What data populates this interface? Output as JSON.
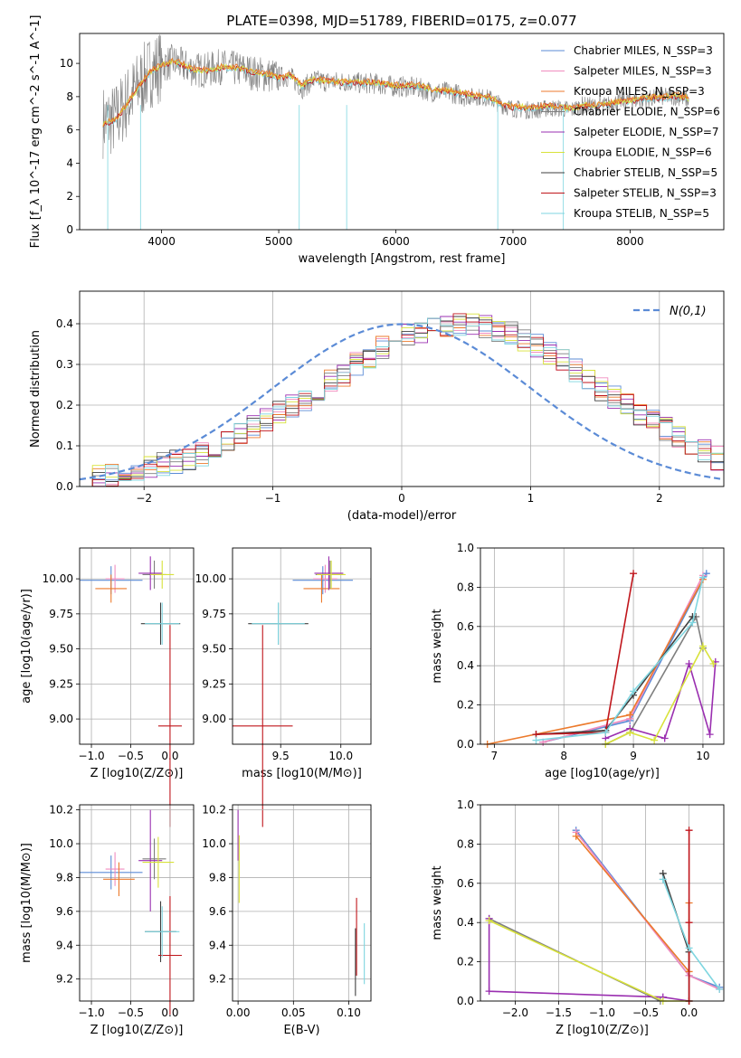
{
  "figure_title": "PLATE=0398, MJD=51789, FIBERID=0175, z=0.077",
  "colors": {
    "Chabrier MILES": "#5b8bd6",
    "Salpeter MILES": "#f08cbf",
    "Kroupa MILES": "#ec7a2c",
    "Chabrier ELODIE": "#7f7f7f",
    "Salpeter ELODIE": "#9a2fb0",
    "Kroupa ELODIE": "#d8e23a",
    "Chabrier STELIB": "#3f3f3f",
    "Salpeter STELIB": "#c0161c",
    "Kroupa STELIB": "#7fd6e0",
    "data": "#808080",
    "gaussian": "#5b8bd6"
  },
  "chart_data": [
    {
      "type": "line",
      "panel": "spectrum",
      "title": "PLATE=0398, MJD=51789, FIBERID=0175, z=0.077",
      "xlabel": "wavelength [Angstrom, rest frame]",
      "ylabel": "Flux [f_λ 10^-17 erg cm^-2 s^-1 A^-1]",
      "xlim": [
        3300,
        8800
      ],
      "ylim": [
        0,
        11.8
      ],
      "xticks": [
        4000,
        5000,
        6000,
        7000,
        8000
      ],
      "yticks": [
        0,
        2,
        4,
        6,
        8,
        10
      ],
      "grid": false,
      "legend_position": "top-right",
      "legend": [
        "Chabrier MILES, N_SSP=3",
        "Salpeter MILES, N_SSP=3",
        "Kroupa MILES, N_SSP=3",
        "Chabrier ELODIE, N_SSP=6",
        "Salpeter ELODIE, N_SSP=7",
        "Kroupa ELODIE, N_SSP=6",
        "Chabrier STELIB, N_SSP=5",
        "Salpeter STELIB, N_SSP=3",
        "Kroupa STELIB, N_SSP=5"
      ],
      "x": [
        3500,
        3600,
        3700,
        3800,
        3900,
        4000,
        4100,
        4200,
        4300,
        4400,
        4500,
        4600,
        4700,
        4800,
        4900,
        5000,
        5100,
        5200,
        5300,
        5400,
        5500,
        5600,
        5700,
        5800,
        5900,
        6000,
        6100,
        6200,
        6300,
        6400,
        6500,
        6600,
        6700,
        6800,
        6900,
        7000,
        7100,
        7200,
        7300,
        7400,
        7500,
        7600,
        7700,
        7800,
        7900,
        8000,
        8100,
        8200,
        8300,
        8400,
        8500
      ],
      "series": [
        {
          "name": "data",
          "values": [
            6.5,
            6.6,
            7.6,
            8.6,
            9.5,
            9.9,
            10.1,
            9.8,
            9.6,
            9.6,
            9.8,
            9.7,
            9.6,
            9.4,
            9.3,
            9.2,
            9.2,
            8.5,
            9.0,
            8.9,
            8.9,
            8.9,
            8.8,
            8.8,
            8.7,
            8.6,
            8.6,
            8.5,
            8.3,
            8.3,
            8.2,
            8.0,
            8.0,
            7.9,
            7.5,
            7.3,
            7.2,
            7.2,
            7.3,
            7.3,
            7.2,
            7.5,
            7.4,
            7.5,
            7.7,
            7.8,
            7.8,
            7.9,
            8.0,
            8.0,
            7.8
          ]
        },
        {
          "name": "model",
          "values": [
            6.3,
            6.5,
            7.4,
            8.5,
            9.4,
            9.8,
            10.1,
            9.8,
            9.5,
            9.5,
            9.7,
            9.7,
            9.6,
            9.4,
            9.3,
            9.1,
            9.2,
            8.6,
            9.0,
            8.9,
            8.8,
            8.8,
            8.8,
            8.8,
            8.7,
            8.6,
            8.6,
            8.6,
            8.4,
            8.3,
            8.2,
            8.1,
            8.0,
            7.9,
            7.5,
            7.3,
            7.3,
            7.3,
            7.4,
            7.3,
            7.2,
            7.4,
            7.4,
            7.5,
            7.6,
            7.7,
            7.8,
            7.9,
            7.9,
            8.0,
            7.8
          ]
        }
      ]
    },
    {
      "type": "line",
      "panel": "residuals",
      "xlabel": "(data-model)/error",
      "ylabel": "Normed distribution",
      "xlim": [
        -2.5,
        2.5
      ],
      "ylim": [
        0,
        0.48
      ],
      "xticks": [
        -2,
        -1,
        0,
        1,
        2
      ],
      "yticks": [
        0.0,
        0.1,
        0.2,
        0.3,
        0.4
      ],
      "grid": true,
      "legend_position": "top-right",
      "legend": [
        "N(0,1)"
      ],
      "bin_width": 0.1,
      "bin_start": -2.5,
      "histogram": [
        0.02,
        0.025,
        0.03,
        0.04,
        0.045,
        0.05,
        0.055,
        0.06,
        0.07,
        0.08,
        0.1,
        0.115,
        0.13,
        0.15,
        0.165,
        0.185,
        0.2,
        0.215,
        0.24,
        0.26,
        0.27,
        0.3,
        0.32,
        0.34,
        0.355,
        0.37,
        0.38,
        0.385,
        0.395,
        0.4,
        0.4,
        0.395,
        0.385,
        0.375,
        0.36,
        0.345,
        0.33,
        0.31,
        0.285,
        0.265,
        0.24,
        0.22,
        0.2,
        0.18,
        0.16,
        0.14,
        0.12,
        0.1,
        0.085,
        0.07,
        0.06
      ]
    },
    {
      "type": "scatter",
      "panel": "age-vs-Z",
      "xlabel": "Z [log10(Z/Z⊙)]",
      "ylabel": "age  [log10(age/yr)]",
      "xlim": [
        -1.15,
        0.3
      ],
      "ylim": [
        8.82,
        10.22
      ],
      "xticks": [
        -1.0,
        -0.5,
        0.0
      ],
      "yticks": [
        9.0,
        9.25,
        9.5,
        9.75,
        10.0
      ],
      "grid": true,
      "points": [
        {
          "label": "Chabrier MILES",
          "x": -0.75,
          "y": 9.99,
          "xerr": 0.4,
          "yerr": 0.1
        },
        {
          "label": "Salpeter MILES",
          "x": -0.7,
          "y": 10.0,
          "xerr": 0.12,
          "yerr": 0.1
        },
        {
          "label": "Kroupa MILES",
          "x": -0.75,
          "y": 9.93,
          "xerr": 0.2,
          "yerr": 0.1
        },
        {
          "label": "Chabrier ELODIE",
          "x": -0.2,
          "y": 10.03,
          "xerr": 0.15,
          "yerr": 0.1
        },
        {
          "label": "Salpeter ELODIE",
          "x": -0.25,
          "y": 10.04,
          "xerr": 0.15,
          "yerr": 0.12
        },
        {
          "label": "Kroupa ELODIE",
          "x": -0.1,
          "y": 10.03,
          "xerr": 0.15,
          "yerr": 0.1
        },
        {
          "label": "Chabrier STELIB",
          "x": -0.12,
          "y": 9.68,
          "xerr": 0.25,
          "yerr": 0.15
        },
        {
          "label": "Salpeter STELIB",
          "x": 0.0,
          "y": 8.95,
          "xerr": 0.15,
          "yerr": 0.72
        },
        {
          "label": "Kroupa STELIB",
          "x": -0.1,
          "y": 9.68,
          "xerr": 0.22,
          "yerr": 0.15
        }
      ]
    },
    {
      "type": "scatter",
      "panel": "age-vs-mass",
      "xlabel": "mass [log10(M/M⊙)]",
      "ylabel": "",
      "xlim": [
        9.1,
        10.25
      ],
      "ylim": [
        8.82,
        10.22
      ],
      "xticks": [
        9.5,
        10.0
      ],
      "yticks": [
        9.0,
        9.25,
        9.5,
        9.75,
        10.0
      ],
      "grid": true,
      "points": [
        {
          "label": "Chabrier MILES",
          "x": 9.85,
          "y": 9.99,
          "xerr": 0.25,
          "yerr": 0.1
        },
        {
          "label": "Salpeter MILES",
          "x": 9.87,
          "y": 10.0,
          "xerr": 0.1,
          "yerr": 0.1
        },
        {
          "label": "Kroupa MILES",
          "x": 9.84,
          "y": 9.93,
          "xerr": 0.15,
          "yerr": 0.1
        },
        {
          "label": "Chabrier ELODIE",
          "x": 9.91,
          "y": 10.03,
          "xerr": 0.12,
          "yerr": 0.1
        },
        {
          "label": "Salpeter ELODIE",
          "x": 9.9,
          "y": 10.04,
          "xerr": 0.12,
          "yerr": 0.12
        },
        {
          "label": "Kroupa ELODIE",
          "x": 9.92,
          "y": 10.03,
          "xerr": 0.12,
          "yerr": 0.1
        },
        {
          "label": "Chabrier STELIB",
          "x": 9.48,
          "y": 9.68,
          "xerr": 0.25,
          "yerr": 0.15
        },
        {
          "label": "Salpeter STELIB",
          "x": 9.35,
          "y": 8.95,
          "xerr": 0.25,
          "yerr": 0.72
        },
        {
          "label": "Kroupa STELIB",
          "x": 9.48,
          "y": 9.68,
          "xerr": 0.22,
          "yerr": 0.15
        }
      ]
    },
    {
      "type": "line",
      "panel": "mass-weight-vs-age",
      "xlabel": "age  [log10(age/yr)]",
      "ylabel": "mass weight",
      "xlim": [
        6.8,
        10.3
      ],
      "ylim": [
        0,
        1.0
      ],
      "xticks": [
        7,
        8,
        9,
        10
      ],
      "yticks": [
        0.0,
        0.2,
        0.4,
        0.6,
        0.8,
        1.0
      ],
      "grid": true,
      "series": [
        {
          "name": "Chabrier MILES",
          "x": [
            7.7,
            8.95,
            10.05
          ],
          "values": [
            0.01,
            0.12,
            0.87
          ]
        },
        {
          "name": "Salpeter MILES",
          "x": [
            7.7,
            8.95,
            10.0
          ],
          "values": [
            0.01,
            0.13,
            0.86
          ]
        },
        {
          "name": "Kroupa MILES",
          "x": [
            6.9,
            8.95,
            10.0
          ],
          "values": [
            0.0,
            0.15,
            0.84
          ]
        },
        {
          "name": "Chabrier ELODIE",
          "x": [
            8.6,
            8.95,
            9.9,
            10.0
          ],
          "values": [
            0.0,
            0.06,
            0.65,
            0.49
          ]
        },
        {
          "name": "Salpeter ELODIE",
          "x": [
            8.6,
            8.95,
            9.45,
            9.8,
            10.1,
            10.18
          ],
          "values": [
            0.03,
            0.08,
            0.03,
            0.41,
            0.05,
            0.42
          ]
        },
        {
          "name": "Kroupa ELODIE",
          "x": [
            8.6,
            8.95,
            9.3,
            10.0,
            10.15
          ],
          "values": [
            0.0,
            0.06,
            0.02,
            0.5,
            0.41
          ]
        },
        {
          "name": "Chabrier STELIB",
          "x": [
            7.6,
            8.6,
            9.0,
            9.85
          ],
          "values": [
            0.05,
            0.07,
            0.25,
            0.65
          ]
        },
        {
          "name": "Salpeter STELIB",
          "x": [
            7.6,
            8.6,
            9.0
          ],
          "values": [
            0.05,
            0.06,
            0.87
          ]
        },
        {
          "name": "Kroupa STELIB",
          "x": [
            7.6,
            8.6,
            9.0,
            9.85,
            10.0
          ],
          "values": [
            0.02,
            0.06,
            0.27,
            0.62,
            0.85
          ]
        }
      ]
    },
    {
      "type": "scatter",
      "panel": "mass-vs-Z",
      "xlabel": "Z [log10(Z/Z⊙)]",
      "ylabel": "mass [log10(M/M⊙)]",
      "xlim": [
        -1.15,
        0.3
      ],
      "ylim": [
        9.07,
        10.23
      ],
      "xticks": [
        -1.0,
        -0.5,
        0.0
      ],
      "yticks": [
        9.2,
        9.4,
        9.6,
        9.8,
        10.0,
        10.2
      ],
      "grid": true,
      "points": [
        {
          "label": "Chabrier MILES",
          "x": -0.75,
          "y": 9.83,
          "xerr": 0.4,
          "yerr": 0.1
        },
        {
          "label": "Salpeter MILES",
          "x": -0.7,
          "y": 9.85,
          "xerr": 0.12,
          "yerr": 0.1
        },
        {
          "label": "Kroupa MILES",
          "x": -0.65,
          "y": 9.79,
          "xerr": 0.2,
          "yerr": 0.1
        },
        {
          "label": "Chabrier ELODIE",
          "x": -0.2,
          "y": 9.91,
          "xerr": 0.15,
          "yerr": 0.12
        },
        {
          "label": "Salpeter ELODIE",
          "x": -0.25,
          "y": 9.9,
          "xerr": 0.15,
          "yerr": 0.3
        },
        {
          "label": "Kroupa ELODIE",
          "x": -0.15,
          "y": 9.89,
          "xerr": 0.2,
          "yerr": 0.15
        },
        {
          "label": "Chabrier STELIB",
          "x": -0.12,
          "y": 9.48,
          "xerr": 0.2,
          "yerr": 0.18
        },
        {
          "label": "Salpeter STELIB",
          "x": 0.0,
          "y": 9.34,
          "xerr": 0.15,
          "yerr": 0.35
        },
        {
          "label": "Kroupa STELIB",
          "x": -0.1,
          "y": 9.48,
          "xerr": 0.22,
          "yerr": 0.15
        }
      ]
    },
    {
      "type": "scatter",
      "panel": "mass-vs-EBV",
      "xlabel": "E(B-V)",
      "ylabel": "",
      "xlim": [
        -0.005,
        0.12
      ],
      "ylim": [
        9.07,
        10.23
      ],
      "xticks": [
        0.0,
        0.05,
        0.1
      ],
      "yticks": [
        9.2,
        9.4,
        9.6,
        9.8,
        10.0,
        10.2
      ],
      "grid": true,
      "points": [
        {
          "label": "Salpeter ELODIE",
          "x": 0.0,
          "y": 10.05,
          "yerr": 0.15
        },
        {
          "label": "Kroupa ELODIE",
          "x": 0.001,
          "y": 9.85,
          "yerr": 0.2
        },
        {
          "label": "Chabrier STELIB",
          "x": 0.106,
          "y": 9.3,
          "yerr": 0.2
        },
        {
          "label": "Salpeter STELIB",
          "x": 0.107,
          "y": 9.45,
          "yerr": 0.23
        },
        {
          "label": "Kroupa STELIB",
          "x": 0.114,
          "y": 9.35,
          "yerr": 0.18
        }
      ]
    },
    {
      "type": "line",
      "panel": "mass-weight-vs-Z",
      "xlabel": "Z [log10(Z/Z⊙)]",
      "ylabel": "mass weight",
      "xlim": [
        -2.4,
        0.4
      ],
      "ylim": [
        0,
        1.0
      ],
      "xticks": [
        -2.0,
        -1.5,
        -1.0,
        -0.5,
        0.0
      ],
      "yticks": [
        0.0,
        0.2,
        0.4,
        0.6,
        0.8,
        1.0
      ],
      "grid": true,
      "series": [
        {
          "name": "Chabrier MILES",
          "x": [
            -1.3,
            0.0,
            0.35
          ],
          "values": [
            0.87,
            0.13,
            0.07
          ]
        },
        {
          "name": "Salpeter MILES",
          "x": [
            -1.3,
            0.0,
            0.35
          ],
          "values": [
            0.86,
            0.13,
            0.06
          ]
        },
        {
          "name": "Kroupa MILES",
          "x": [
            -1.3,
            0.0,
            0.0
          ],
          "values": [
            0.84,
            0.15,
            0.5
          ]
        },
        {
          "name": "Chabrier ELODIE",
          "x": [
            -2.3,
            -0.33
          ],
          "values": [
            0.42,
            0.0
          ]
        },
        {
          "name": "Salpeter ELODIE",
          "x": [
            -2.3,
            -2.3,
            -0.3,
            0.0
          ],
          "values": [
            0.42,
            0.05,
            0.02,
            0.0
          ]
        },
        {
          "name": "Kroupa ELODIE",
          "x": [
            -2.3,
            -0.3,
            0.0
          ],
          "values": [
            0.41,
            0.0,
            0.0
          ]
        },
        {
          "name": "Chabrier STELIB",
          "x": [
            -0.3,
            0.0,
            0.0
          ],
          "values": [
            0.65,
            0.25,
            0.0
          ]
        },
        {
          "name": "Salpeter STELIB",
          "x": [
            0.0,
            0.0,
            0.0
          ],
          "values": [
            0.87,
            0.4,
            0.0
          ]
        },
        {
          "name": "Kroupa STELIB",
          "x": [
            -0.3,
            0.0,
            0.35
          ],
          "values": [
            0.62,
            0.27,
            0.06
          ]
        }
      ]
    }
  ]
}
